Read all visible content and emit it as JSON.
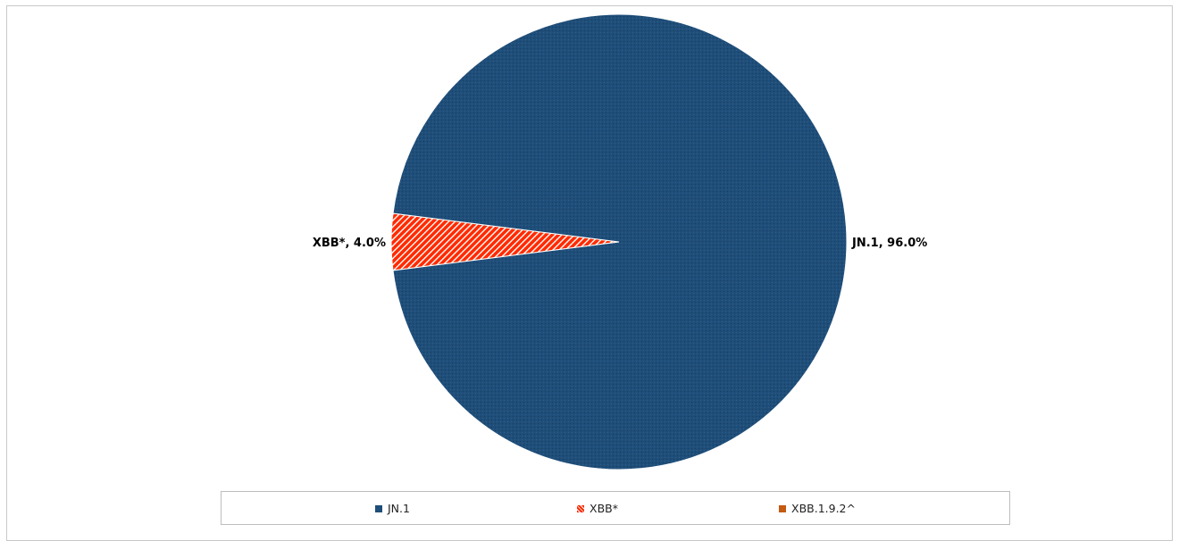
{
  "chart_data": {
    "type": "pie",
    "slices": [
      {
        "name": "JN.1",
        "value": 96.0,
        "label": "JN.1, 96.0%",
        "color": "#1f4e79",
        "pattern": "dots"
      },
      {
        "name": "XBB*",
        "value": 4.0,
        "label": "XBB*, 4.0%",
        "color": "#ff2a00",
        "pattern": "hatch"
      },
      {
        "name": "XBB.1.9.2^",
        "value": 0.0,
        "label": "",
        "color": "#c55a11",
        "pattern": "none"
      }
    ],
    "legend": {
      "placement": "bottom",
      "entries": [
        "JN.1",
        "XBB*",
        "XBB.1.9.2^"
      ]
    },
    "title": ""
  }
}
